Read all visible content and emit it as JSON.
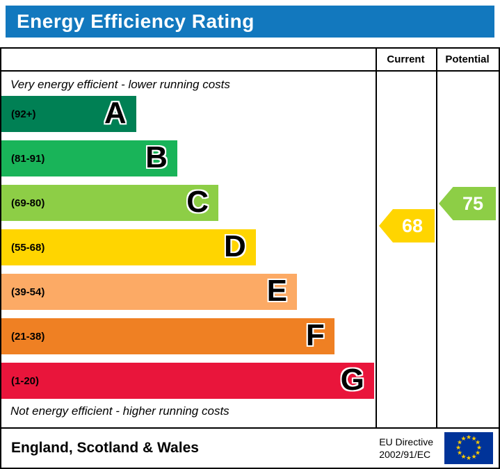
{
  "header": {
    "title": "Energy Efficiency Rating",
    "bar_color": "#1278be"
  },
  "table": {
    "current_label": "Current",
    "potential_label": "Potential",
    "top_note": "Very energy efficient - lower running costs",
    "bottom_note": "Not energy efficient - higher running costs"
  },
  "chart_data": {
    "type": "bar",
    "title": "Energy Efficiency Rating",
    "categories": [
      "A",
      "B",
      "C",
      "D",
      "E",
      "F",
      "G"
    ],
    "bands": [
      {
        "letter": "A",
        "range": "(92+)",
        "color": "#008054",
        "width_pct": 36
      },
      {
        "letter": "B",
        "range": "(81-91)",
        "color": "#19b459",
        "width_pct": 47
      },
      {
        "letter": "C",
        "range": "(69-80)",
        "color": "#8dce46",
        "width_pct": 58
      },
      {
        "letter": "D",
        "range": "(55-68)",
        "color": "#ffd500",
        "width_pct": 68
      },
      {
        "letter": "E",
        "range": "(39-54)",
        "color": "#fcaa65",
        "width_pct": 79
      },
      {
        "letter": "F",
        "range": "(21-38)",
        "color": "#ef8023",
        "width_pct": 89
      },
      {
        "letter": "G",
        "range": "(1-20)",
        "color": "#e9153b",
        "width_pct": 99.6
      }
    ],
    "current": {
      "value": 68,
      "color": "#ffd500",
      "band": "D"
    },
    "potential": {
      "value": 75,
      "color": "#8dce46",
      "band": "C"
    }
  },
  "footer": {
    "region": "England, Scotland & Wales",
    "directive_line1": "EU Directive",
    "directive_line2": "2002/91/EC",
    "eu_flag": {
      "background": "#003399",
      "star_color": "#ffcc00"
    }
  }
}
